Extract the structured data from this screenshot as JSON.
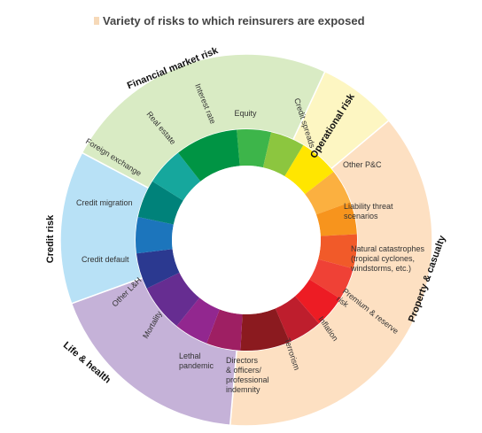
{
  "title": "Variety of risks to which reinsurers are exposed",
  "categories": [
    {
      "key": "financial",
      "label": "Financial market risk",
      "color": "#d9ebc4"
    },
    {
      "key": "operational",
      "label": "Operational risk",
      "color": "#fdf6c2"
    },
    {
      "key": "property",
      "label": "Property & casualty",
      "color": "#fde0c2"
    },
    {
      "key": "life",
      "label": "Life & health",
      "color": "#c5b2d8"
    },
    {
      "key": "credit",
      "label": "Credit risk",
      "color": "#b8e1f6"
    }
  ],
  "segments": [
    {
      "key": "equity",
      "category": "financial",
      "label": "Equity",
      "color": "#3db54a"
    },
    {
      "key": "credit-spreads",
      "category": "financial",
      "label": "Credit spreads",
      "color": "#8cc63f"
    },
    {
      "key": "operational",
      "category": "operational",
      "label": "",
      "color": "#ffe600"
    },
    {
      "key": "other-pc",
      "category": "property",
      "label": "Other P&C",
      "color": "#fbb040"
    },
    {
      "key": "liability",
      "category": "property",
      "label": "Liability threat scenarios",
      "color": "#f7941d"
    },
    {
      "key": "natcat",
      "category": "property",
      "label": "Natural catastrophes (tropical cyclones, windstorms, etc.)",
      "color": "#f15a29"
    },
    {
      "key": "premium-reserve",
      "category": "property",
      "label": "Premium & reserve risk",
      "color": "#ef4136"
    },
    {
      "key": "inflation",
      "category": "property",
      "label": "Inflation",
      "color": "#ed1c24"
    },
    {
      "key": "terrorism",
      "category": "property",
      "label": "Terrorism",
      "color": "#be1e2d"
    },
    {
      "key": "directors",
      "category": "property",
      "label": "Directors & officers/ professional indemnity",
      "color": "#8b1a1f"
    },
    {
      "key": "lethal-pandemic",
      "category": "life",
      "label": "Lethal pandemic",
      "color": "#9e1f63"
    },
    {
      "key": "mortality",
      "category": "life",
      "label": "Mortality",
      "color": "#92278f"
    },
    {
      "key": "other-lh",
      "category": "life",
      "label": "Other L&H",
      "color": "#662d91"
    },
    {
      "key": "credit-default",
      "category": "credit",
      "label": "Credit default",
      "color": "#2b3990"
    },
    {
      "key": "credit-migration",
      "category": "credit",
      "label": "Credit migration",
      "color": "#1c75bc"
    },
    {
      "key": "foreign-exchange",
      "category": "financial",
      "label": "Foreign exchange",
      "color": "#00827a"
    },
    {
      "key": "real-estate",
      "category": "financial",
      "label": "Real estate",
      "color": "#16a79d"
    },
    {
      "key": "interest-rate",
      "category": "financial",
      "label": "Interest rate",
      "color": "#009444"
    }
  ]
}
